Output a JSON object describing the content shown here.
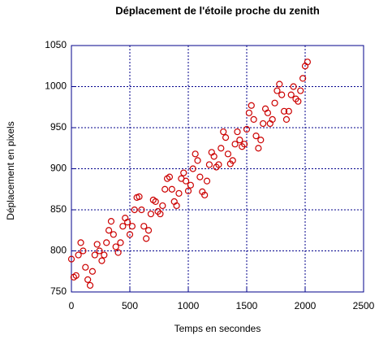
{
  "chart_data": {
    "type": "scatter",
    "title": "Déplacement de l'étoile proche du zenith",
    "x_label": "Temps en secondes",
    "y_label": "Déplacement en pixels",
    "color": "#cc0000",
    "axis_color": "#00008b",
    "grid": true,
    "xlim": [
      0,
      2500
    ],
    "xticks": [
      0,
      500,
      1000,
      1500,
      2000,
      2500
    ],
    "ylim": [
      750,
      1050
    ],
    "yticks": [
      750,
      800,
      850,
      900,
      950,
      1000,
      1050
    ],
    "x": [
      0,
      20,
      40,
      60,
      80,
      100,
      120,
      140,
      160,
      180,
      200,
      220,
      240,
      260,
      280,
      300,
      320,
      340,
      360,
      380,
      400,
      420,
      440,
      460,
      480,
      500,
      520,
      540,
      560,
      580,
      600,
      620,
      640,
      660,
      680,
      700,
      720,
      740,
      760,
      780,
      800,
      820,
      840,
      860,
      880,
      900,
      920,
      940,
      960,
      980,
      1000,
      1020,
      1040,
      1060,
      1080,
      1100,
      1120,
      1140,
      1160,
      1180,
      1200,
      1220,
      1240,
      1260,
      1280,
      1300,
      1320,
      1340,
      1360,
      1380,
      1400,
      1420,
      1440,
      1460,
      1480,
      1500,
      1520,
      1540,
      1560,
      1580,
      1600,
      1620,
      1640,
      1660,
      1680,
      1700,
      1720,
      1740,
      1760,
      1780,
      1800,
      1820,
      1840,
      1860,
      1880,
      1900,
      1920,
      1940,
      1960,
      1980,
      2000,
      2020
    ],
    "values": [
      790,
      768,
      770,
      795,
      810,
      800,
      780,
      765,
      758,
      775,
      795,
      808,
      800,
      788,
      795,
      810,
      825,
      836,
      820,
      805,
      798,
      810,
      830,
      840,
      835,
      820,
      830,
      850,
      865,
      866,
      850,
      830,
      815,
      825,
      845,
      862,
      860,
      848,
      845,
      855,
      875,
      888,
      890,
      875,
      860,
      855,
      870,
      888,
      895,
      885,
      873,
      880,
      900,
      918,
      910,
      890,
      872,
      868,
      885,
      905,
      920,
      915,
      902,
      905,
      925,
      945,
      938,
      918,
      906,
      910,
      930,
      945,
      935,
      927,
      930,
      948,
      968,
      977,
      960,
      940,
      925,
      935,
      955,
      973,
      968,
      955,
      960,
      980,
      995,
      1003,
      990,
      970,
      960,
      970,
      990,
      1000,
      985,
      982,
      995,
      1010,
      1025,
      1030
    ]
  }
}
